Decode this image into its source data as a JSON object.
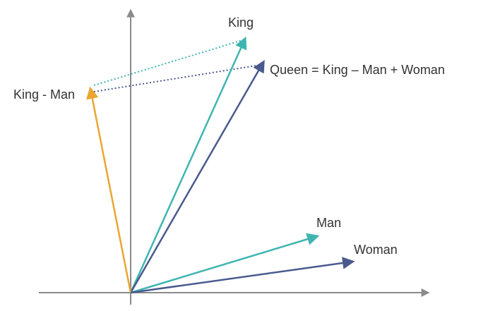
{
  "vectors": [
    {
      "label": "King"
    },
    {
      "label": "Queen = King – Man + Woman"
    },
    {
      "label": "King - Man"
    },
    {
      "label": "Man"
    },
    {
      "label": "Woman"
    }
  ]
}
